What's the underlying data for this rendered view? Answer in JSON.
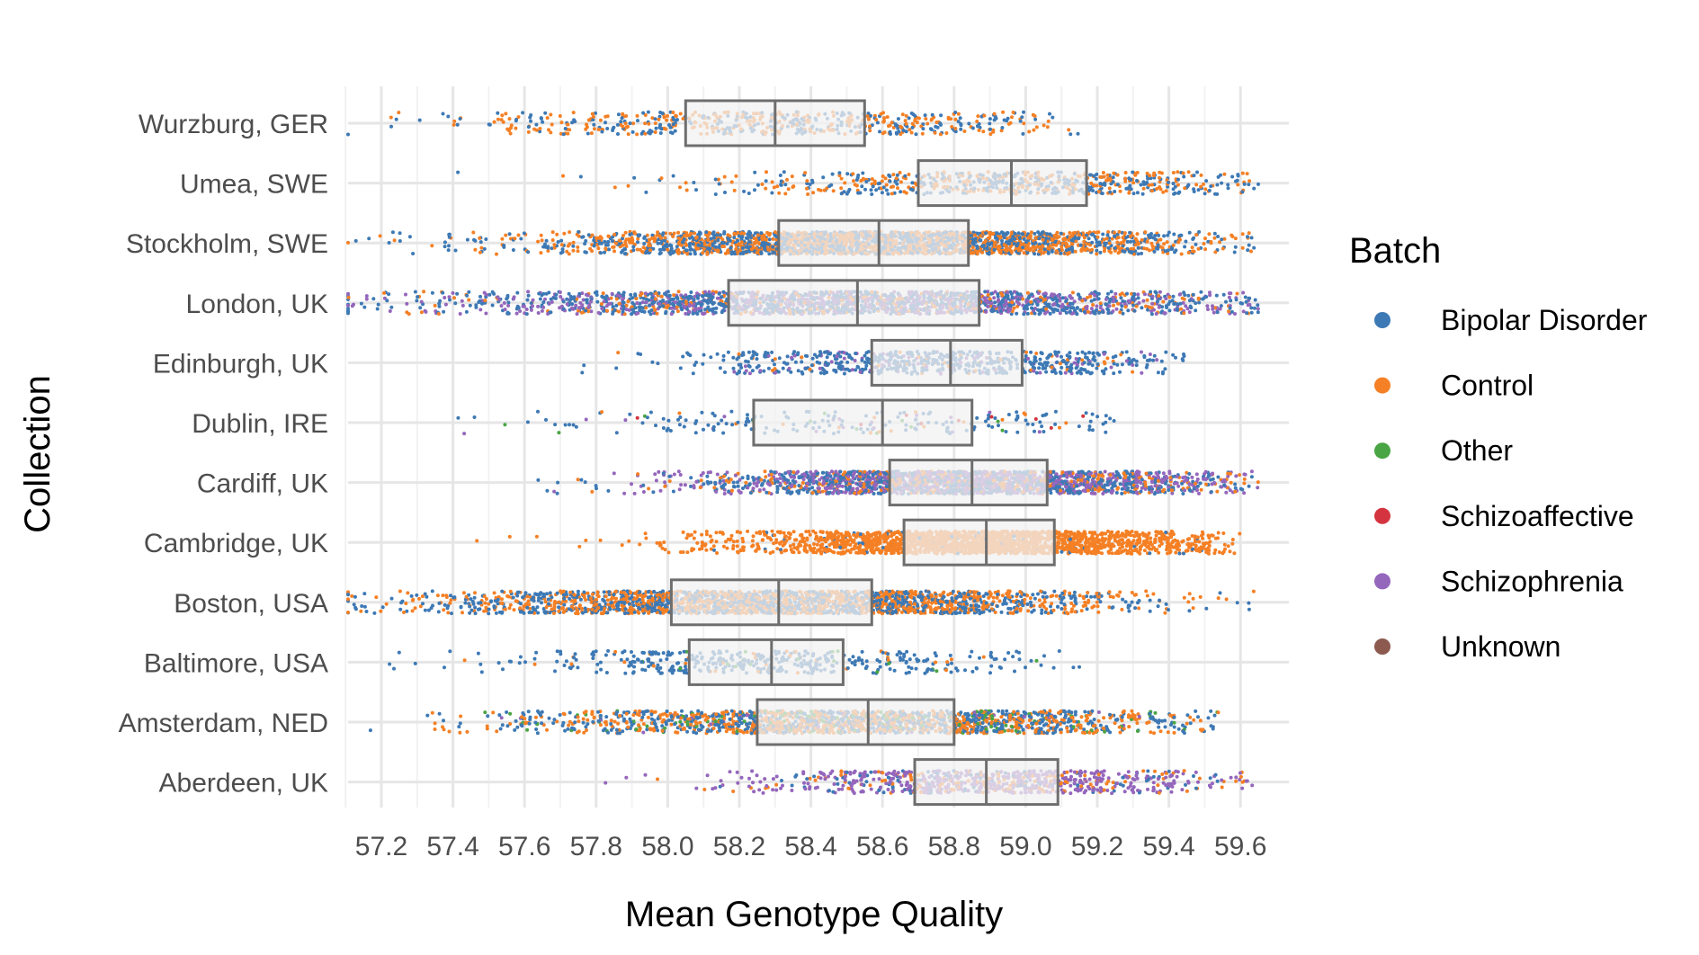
{
  "chart_data": {
    "type": "scatter",
    "subtype": "jittered strip plot with box plots",
    "orientation": "horizontal",
    "xlabel": "Mean Genotype Quality",
    "ylabel": "Collection",
    "xlim": [
      57.0,
      59.65
    ],
    "x_ticks": [
      57.2,
      57.4,
      57.6,
      57.8,
      58.0,
      58.2,
      58.4,
      58.6,
      58.8,
      59.0,
      59.2,
      59.4,
      59.6
    ],
    "grid": true,
    "legend": {
      "title": "Batch",
      "position": "right",
      "entries": [
        {
          "name": "Bipolar Disorder",
          "color": "#3d79b5"
        },
        {
          "name": "Control",
          "color": "#f58025"
        },
        {
          "name": "Other",
          "color": "#4aa544"
        },
        {
          "name": "Schizoaffective",
          "color": "#d4343f"
        },
        {
          "name": "Schizophrenia",
          "color": "#9466bc"
        },
        {
          "name": "Unknown",
          "color": "#8c5a4f"
        }
      ]
    },
    "categories": [
      "Wurzburg, GER",
      "Umea, SWE",
      "Stockholm, SWE",
      "London, UK",
      "Edinburgh, UK",
      "Dublin, IRE",
      "Cardiff, UK",
      "Cambridge, UK",
      "Boston, USA",
      "Baltimore, USA",
      "Amsterdam, NED",
      "Aberdeen, UK"
    ],
    "boxes": [
      {
        "category": "Wurzburg, GER",
        "q1": 58.05,
        "median": 58.3,
        "q3": 58.55
      },
      {
        "category": "Umea, SWE",
        "q1": 58.7,
        "median": 58.96,
        "q3": 59.17
      },
      {
        "category": "Stockholm, SWE",
        "q1": 58.31,
        "median": 58.59,
        "q3": 58.84
      },
      {
        "category": "London, UK",
        "q1": 58.17,
        "median": 58.53,
        "q3": 58.87
      },
      {
        "category": "Edinburgh, UK",
        "q1": 58.57,
        "median": 58.79,
        "q3": 58.99
      },
      {
        "category": "Dublin, IRE",
        "q1": 58.24,
        "median": 58.6,
        "q3": 58.85
      },
      {
        "category": "Cardiff, UK",
        "q1": 58.62,
        "median": 58.85,
        "q3": 59.06
      },
      {
        "category": "Cambridge, UK",
        "q1": 58.66,
        "median": 58.89,
        "q3": 59.08
      },
      {
        "category": "Boston, USA",
        "q1": 58.01,
        "median": 58.31,
        "q3": 58.57
      },
      {
        "category": "Baltimore, USA",
        "q1": 58.06,
        "median": 58.29,
        "q3": 58.49
      },
      {
        "category": "Amsterdam, NED",
        "q1": 58.25,
        "median": 58.56,
        "q3": 58.8
      },
      {
        "category": "Aberdeen, UK",
        "q1": 58.69,
        "median": 58.89,
        "q3": 59.09
      }
    ],
    "points": [
      {
        "category": "Wurzburg, GER",
        "count": 600,
        "range": [
          57.05,
          59.15
        ],
        "composition": {
          "Bipolar Disorder": 0.5,
          "Control": 0.5
        }
      },
      {
        "category": "Umea, SWE",
        "count": 650,
        "range": [
          57.05,
          59.65
        ],
        "composition": {
          "Bipolar Disorder": 0.55,
          "Control": 0.45
        }
      },
      {
        "category": "Stockholm, SWE",
        "count": 2600,
        "range": [
          57.0,
          59.65
        ],
        "composition": {
          "Bipolar Disorder": 0.5,
          "Control": 0.5
        }
      },
      {
        "category": "London, UK",
        "count": 2100,
        "range": [
          57.0,
          59.65
        ],
        "composition": {
          "Bipolar Disorder": 0.5,
          "Control": 0.15,
          "Schizophrenia": 0.35
        }
      },
      {
        "category": "Edinburgh, UK",
        "count": 700,
        "range": [
          57.0,
          59.45
        ],
        "composition": {
          "Bipolar Disorder": 0.8,
          "Control": 0.05,
          "Schizophrenia": 0.15
        }
      },
      {
        "category": "Dublin, IRE",
        "count": 220,
        "range": [
          57.05,
          59.25
        ],
        "composition": {
          "Bipolar Disorder": 0.7,
          "Control": 0.08,
          "Other": 0.05,
          "Schizoaffective": 0.07,
          "Schizophrenia": 0.1
        }
      },
      {
        "category": "Cardiff, UK",
        "count": 2200,
        "range": [
          57.0,
          59.65
        ],
        "composition": {
          "Bipolar Disorder": 0.4,
          "Control": 0.2,
          "Schizophrenia": 0.4
        }
      },
      {
        "category": "Cambridge, UK",
        "count": 2000,
        "range": [
          57.05,
          59.6
        ],
        "composition": {
          "Control": 0.97,
          "Bipolar Disorder": 0.03
        }
      },
      {
        "category": "Boston, USA",
        "count": 2400,
        "range": [
          57.0,
          59.65
        ],
        "composition": {
          "Bipolar Disorder": 0.5,
          "Control": 0.5
        }
      },
      {
        "category": "Baltimore, USA",
        "count": 450,
        "range": [
          57.1,
          59.15
        ],
        "composition": {
          "Bipolar Disorder": 0.85,
          "Control": 0.1,
          "Other": 0.05
        }
      },
      {
        "category": "Amsterdam, NED",
        "count": 1800,
        "range": [
          57.0,
          59.55
        ],
        "composition": {
          "Bipolar Disorder": 0.45,
          "Control": 0.45,
          "Other": 0.08,
          "Schizophrenia": 0.02
        }
      },
      {
        "category": "Aberdeen, UK",
        "count": 800,
        "range": [
          57.5,
          59.65
        ],
        "composition": {
          "Bipolar Disorder": 0.15,
          "Control": 0.2,
          "Schizophrenia": 0.65
        }
      }
    ]
  }
}
